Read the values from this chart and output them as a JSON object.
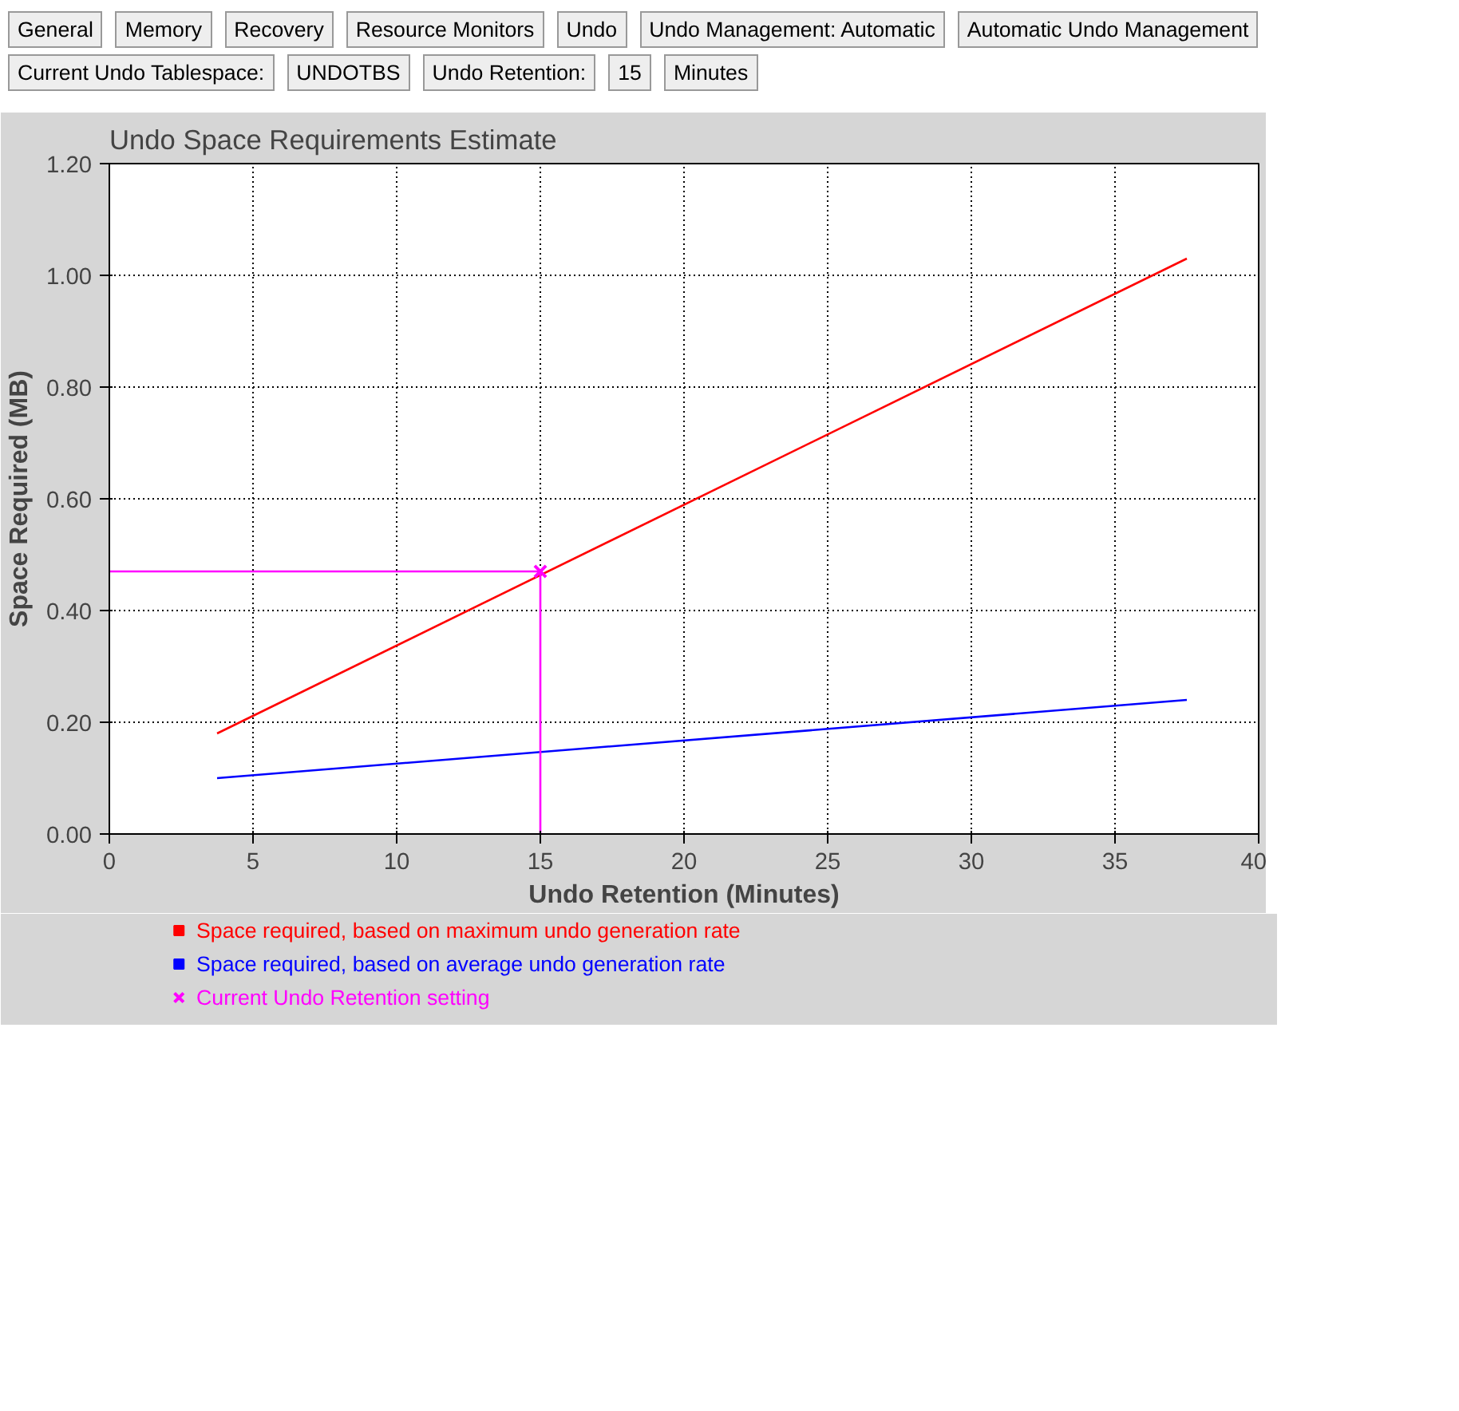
{
  "chart_data": {
    "type": "line",
    "title": "Undo Space Requirements Estimate",
    "xlabel": "Undo Retention (Minutes)",
    "ylabel": "Space Required (MB)",
    "annotations": [
      "General",
      "Memory",
      "Recovery",
      "Resource Monitors",
      "Undo",
      "Undo Management:  Automatic",
      "Automatic Undo Management",
      "Current Undo Tablespace:",
      "UNDOTBS",
      "Undo Retention:",
      "15",
      "Minutes"
    ],
    "xlim": [
      0,
      40
    ],
    "xticks": [
      0,
      5,
      10,
      15,
      20,
      25,
      30,
      35,
      40
    ],
    "ylim": [
      0,
      1.2
    ],
    "yticks": [
      {
        "value": 0,
        "label": "0.00"
      },
      {
        "value": 0.2,
        "label": "0.20"
      },
      {
        "value": 0.4,
        "label": "0.40"
      },
      {
        "value": 0.6,
        "label": "0.60"
      },
      {
        "value": 0.8,
        "label": "0.80"
      },
      {
        "value": 1.0,
        "label": "1.00"
      },
      {
        "value": 1.2,
        "label": "1.20"
      }
    ],
    "grid": true,
    "legend": "bottom",
    "series": [
      {
        "name": "Space required, based on maximum undo generation rate",
        "color": "#ff0000",
        "x": [
          3.75,
          37.5
        ],
        "values": [
          0.18,
          1.03
        ],
        "marker": "none"
      },
      {
        "name": "Space required, based on average undo generation rate",
        "color": "#0000ff",
        "x": [
          3.75,
          37.5
        ],
        "values": [
          0.1,
          0.24
        ],
        "marker": "none"
      },
      {
        "type": "line",
        "color": "#ff00ff",
        "x": [
          0,
          15
        ],
        "values": [
          0.47,
          0.47
        ],
        "marker": "none"
      },
      {
        "type": "line",
        "color": "#ff00ff",
        "x": [
          15,
          15
        ],
        "values": [
          0,
          0.47
        ],
        "marker": "none"
      },
      {
        "type": "scatter",
        "name": "Current Undo Retention setting",
        "color": "#ff00ff",
        "x": [
          15
        ],
        "values": [
          0.47
        ],
        "marker": "cross"
      }
    ]
  }
}
